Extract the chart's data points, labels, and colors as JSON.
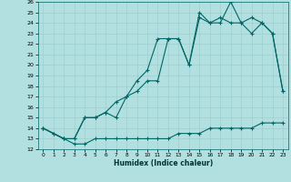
{
  "xlabel": "Humidex (Indice chaleur)",
  "bg_color": "#b2dfdf",
  "grid_color": "#9ecece",
  "line_color": "#006666",
  "xlim": [
    -0.5,
    23.5
  ],
  "ylim": [
    12,
    26
  ],
  "yticks": [
    12,
    13,
    14,
    15,
    16,
    17,
    18,
    19,
    20,
    21,
    22,
    23,
    24,
    25,
    26
  ],
  "xticks": [
    0,
    1,
    2,
    3,
    4,
    5,
    6,
    7,
    8,
    9,
    10,
    11,
    12,
    13,
    14,
    15,
    16,
    17,
    18,
    19,
    20,
    21,
    22,
    23
  ],
  "line1_x": [
    0,
    1,
    2,
    3,
    4,
    5,
    6,
    7,
    8,
    9,
    10,
    11,
    12,
    13,
    14,
    15,
    16,
    17,
    18,
    19,
    20,
    21,
    22,
    23
  ],
  "line1_y": [
    14,
    13.5,
    13,
    12.5,
    12.5,
    13,
    13,
    13,
    13,
    13,
    13,
    13,
    13,
    13.5,
    13.5,
    13.5,
    14,
    14,
    14,
    14,
    14,
    14.5,
    14.5,
    14.5
  ],
  "line2_x": [
    0,
    1,
    2,
    3,
    4,
    5,
    6,
    7,
    8,
    9,
    10,
    11,
    12,
    13,
    14,
    15,
    16,
    17,
    18,
    19,
    20,
    21,
    22,
    23
  ],
  "line2_y": [
    14,
    13.5,
    13,
    13,
    15,
    15,
    15.5,
    15,
    17,
    17.5,
    18.5,
    18.5,
    22.5,
    22.5,
    20,
    24.5,
    24,
    24,
    26,
    24,
    24.5,
    24,
    23,
    17.5
  ],
  "line3_x": [
    0,
    2,
    3,
    4,
    5,
    6,
    7,
    8,
    9,
    10,
    11,
    12,
    13,
    14,
    15,
    16,
    17,
    18,
    19,
    20,
    21,
    22,
    23
  ],
  "line3_y": [
    14,
    13,
    13,
    15,
    15,
    15.5,
    16.5,
    17,
    18.5,
    19.5,
    22.5,
    22.5,
    22.5,
    20,
    25,
    24,
    24.5,
    24,
    24,
    23,
    24,
    23,
    17.5
  ]
}
